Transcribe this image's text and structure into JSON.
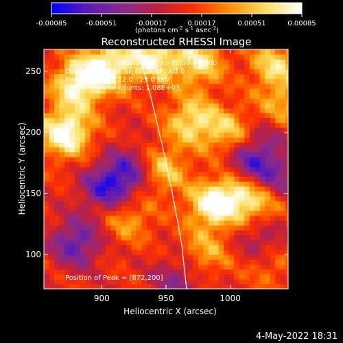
{
  "chart_data": {
    "type": "heatmap",
    "title": "Reconstructed RHESSI Image",
    "xlabel": "Heliocentric X (arcsec)",
    "ylabel": "Heliocentric Y (arcsec)",
    "xlim": [
      855,
      1045
    ],
    "ylim": [
      72,
      268
    ],
    "x_ticks": [
      900,
      950,
      1000
    ],
    "y_ticks": [
      100,
      150,
      200,
      250
    ],
    "colorbar": {
      "ticks": [
        "-0.00085",
        "-0.00051",
        "-0.00017",
        "0.00017",
        "0.00051",
        "0.00085"
      ],
      "range": [
        -0.00085,
        0.00085
      ],
      "unit_main": "(photons cm",
      "unit_exp1": "-2",
      "unit_mid": " s",
      "unit_exp2": "-1",
      "unit_end": " asec",
      "unit_exp3": "-2",
      "unit_close": ")",
      "colors": [
        "#0000ff",
        "#5a1ab8",
        "#8a2a8a",
        "#c0203a",
        "#ff3000",
        "#ff9000",
        "#ffe060",
        "#ffffff"
      ]
    },
    "annotations": {
      "time_range": "3-Nov-2004 02:16:56.000 to 02:17:56.000",
      "detectors": "Detectors: 3F 4F 5F 6F 7F 8F, Att 0",
      "energy": "Energy Range: 12.0 - 25.0 keV",
      "clean_label": "Clean",
      "total_counts": "Total counts: 1.08E+03",
      "peak": "Position of Peak = [872,200]"
    },
    "limb_curve": [
      [
        928,
        268
      ],
      [
        938,
        230
      ],
      [
        947,
        190
      ],
      [
        955,
        150
      ],
      [
        962,
        110
      ],
      [
        966,
        72
      ]
    ],
    "bright_regions": [
      {
        "x": 872,
        "y": 200,
        "value": 0.00085
      },
      {
        "x": 882,
        "y": 240,
        "value": 0.00075
      },
      {
        "x": 905,
        "y": 255,
        "value": 0.0007
      },
      {
        "x": 940,
        "y": 262,
        "value": 0.00068
      },
      {
        "x": 975,
        "y": 258,
        "value": 0.0006
      },
      {
        "x": 1035,
        "y": 255,
        "value": 0.00055
      },
      {
        "x": 970,
        "y": 210,
        "value": 0.0006
      },
      {
        "x": 1000,
        "y": 200,
        "value": 0.0005
      },
      {
        "x": 945,
        "y": 170,
        "value": 0.0006
      },
      {
        "x": 985,
        "y": 140,
        "value": 0.00065
      },
      {
        "x": 1005,
        "y": 150,
        "value": 0.00055
      },
      {
        "x": 1025,
        "y": 145,
        "value": 0.0005
      },
      {
        "x": 920,
        "y": 130,
        "value": 0.0004
      },
      {
        "x": 980,
        "y": 100,
        "value": 0.0004
      },
      {
        "x": 1030,
        "y": 95,
        "value": 0.00035
      },
      {
        "x": 1040,
        "y": 220,
        "value": 0.00045
      }
    ],
    "dark_regions": [
      {
        "x": 880,
        "y": 110,
        "value": -0.0006
      },
      {
        "x": 905,
        "y": 155,
        "value": -0.0007
      },
      {
        "x": 925,
        "y": 170,
        "value": -0.00055
      },
      {
        "x": 1015,
        "y": 175,
        "value": -0.0006
      },
      {
        "x": 1035,
        "y": 160,
        "value": -0.0005
      },
      {
        "x": 1025,
        "y": 110,
        "value": -0.00045
      },
      {
        "x": 960,
        "y": 80,
        "value": -0.0004
      },
      {
        "x": 1030,
        "y": 200,
        "value": -0.0003
      }
    ]
  },
  "footer": {
    "date": "4-May-2022 18:31"
  }
}
